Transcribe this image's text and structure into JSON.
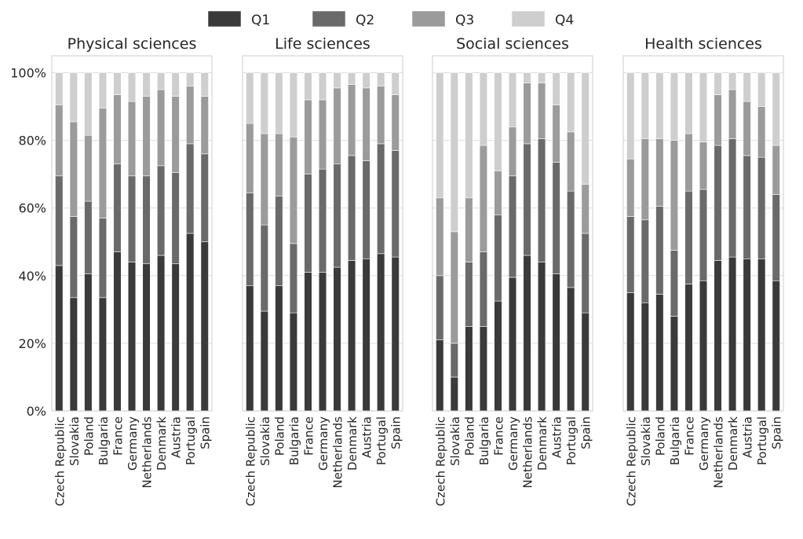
{
  "legend": {
    "placement": "top-center",
    "items": [
      {
        "label": "Q1",
        "color": "#3a3a3a"
      },
      {
        "label": "Q2",
        "color": "#6a6a6a"
      },
      {
        "label": "Q3",
        "color": "#9b9b9b"
      },
      {
        "label": "Q4",
        "color": "#cecece"
      }
    ]
  },
  "chart_data": [
    {
      "type": "bar",
      "stacked": true,
      "title": "Physical sciences",
      "categories": [
        "Czech Republic",
        "Slovakia",
        "Poland",
        "Bulgaria",
        "France",
        "Germany",
        "Netherlands",
        "Denmark",
        "Austria",
        "Portugal",
        "Spain"
      ],
      "series": [
        {
          "name": "Q1",
          "values": [
            43,
            33.5,
            40.5,
            33.5,
            47,
            44,
            43.5,
            46,
            43.5,
            52.5,
            50
          ]
        },
        {
          "name": "Q2",
          "values": [
            26.5,
            24,
            21.5,
            23.5,
            26,
            25.5,
            26,
            26.5,
            27,
            26.5,
            26
          ]
        },
        {
          "name": "Q3",
          "values": [
            21,
            28,
            19.5,
            32.5,
            20.5,
            22,
            23.5,
            22.5,
            22.5,
            17,
            17
          ]
        },
        {
          "name": "Q4",
          "values": [
            9.5,
            14.5,
            18.5,
            10.5,
            6.5,
            8.5,
            7,
            5,
            7,
            4,
            7
          ]
        }
      ],
      "ylim": [
        0,
        105
      ],
      "yticks": [
        0,
        20,
        40,
        60,
        80,
        100
      ],
      "ytick_labels": [
        "0%",
        "20%",
        "40%",
        "60%",
        "80%",
        "100%"
      ],
      "grid": true
    },
    {
      "type": "bar",
      "stacked": true,
      "title": "Life sciences",
      "categories": [
        "Czech Republic",
        "Slovakia",
        "Poland",
        "Bulgaria",
        "France",
        "Germany",
        "Netherlands",
        "Denmark",
        "Austria",
        "Portugal",
        "Spain"
      ],
      "series": [
        {
          "name": "Q1",
          "values": [
            37,
            29.5,
            37,
            29,
            41,
            41,
            42.5,
            44.5,
            45,
            46.5,
            45.5
          ]
        },
        {
          "name": "Q2",
          "values": [
            27.5,
            25.5,
            26.5,
            20.5,
            29,
            30.5,
            30.5,
            31,
            29,
            32.5,
            31.5
          ]
        },
        {
          "name": "Q3",
          "values": [
            20.5,
            27,
            18.5,
            31.5,
            22,
            20.5,
            22.5,
            21,
            21.5,
            17,
            16.5
          ]
        },
        {
          "name": "Q4",
          "values": [
            15,
            18,
            18,
            19,
            8,
            8,
            4.5,
            3.5,
            4.5,
            4,
            6.5
          ]
        }
      ],
      "ylim": [
        0,
        105
      ],
      "yticks": [
        0,
        20,
        40,
        60,
        80,
        100
      ],
      "ytick_labels": [
        "",
        "",
        "",
        "",
        "",
        ""
      ],
      "grid": true
    },
    {
      "type": "bar",
      "stacked": true,
      "title": "Social sciences",
      "categories": [
        "Czech Republic",
        "Slovakia",
        "Poland",
        "Bulgaria",
        "France",
        "Germany",
        "Netherlands",
        "Denmark",
        "Austria",
        "Portugal",
        "Spain"
      ],
      "series": [
        {
          "name": "Q1",
          "values": [
            21,
            10,
            25,
            25,
            32.5,
            39.5,
            46,
            44,
            40.5,
            36.5,
            29
          ]
        },
        {
          "name": "Q2",
          "values": [
            19,
            10,
            19,
            22,
            25.5,
            30,
            33,
            36.5,
            33,
            28.5,
            23.5
          ]
        },
        {
          "name": "Q3",
          "values": [
            23,
            33,
            19,
            31.5,
            13,
            14.5,
            18,
            16.5,
            17,
            17.5,
            14.5
          ]
        },
        {
          "name": "Q4",
          "values": [
            37,
            47,
            37,
            21.5,
            29,
            16,
            3,
            3,
            9.5,
            17.5,
            33
          ]
        }
      ],
      "ylim": [
        0,
        105
      ],
      "yticks": [
        0,
        20,
        40,
        60,
        80,
        100
      ],
      "ytick_labels": [
        "",
        "",
        "",
        "",
        "",
        ""
      ],
      "grid": true
    },
    {
      "type": "bar",
      "stacked": true,
      "title": "Health sciences",
      "categories": [
        "Czech Republic",
        "Slovakia",
        "Poland",
        "Bulgaria",
        "France",
        "Germany",
        "Netherlands",
        "Denmark",
        "Austria",
        "Portugal",
        "Spain"
      ],
      "series": [
        {
          "name": "Q1",
          "values": [
            35,
            32,
            34.5,
            28,
            37.5,
            38.5,
            44.5,
            45.5,
            45,
            45,
            38.5
          ]
        },
        {
          "name": "Q2",
          "values": [
            22.5,
            24.5,
            26,
            19.5,
            27.5,
            27,
            34,
            35,
            30.5,
            30,
            25.5
          ]
        },
        {
          "name": "Q3",
          "values": [
            17,
            24,
            20,
            32.5,
            17,
            14,
            15,
            14.5,
            16,
            15,
            14.5
          ]
        },
        {
          "name": "Q4",
          "values": [
            25.5,
            19.5,
            19.5,
            20,
            18,
            20.5,
            6.5,
            5,
            8.5,
            10,
            21.5
          ]
        }
      ],
      "ylim": [
        0,
        105
      ],
      "yticks": [
        0,
        20,
        40,
        60,
        80,
        100
      ],
      "ytick_labels": [
        "",
        "",
        "",
        "",
        "",
        ""
      ],
      "grid": true
    }
  ]
}
